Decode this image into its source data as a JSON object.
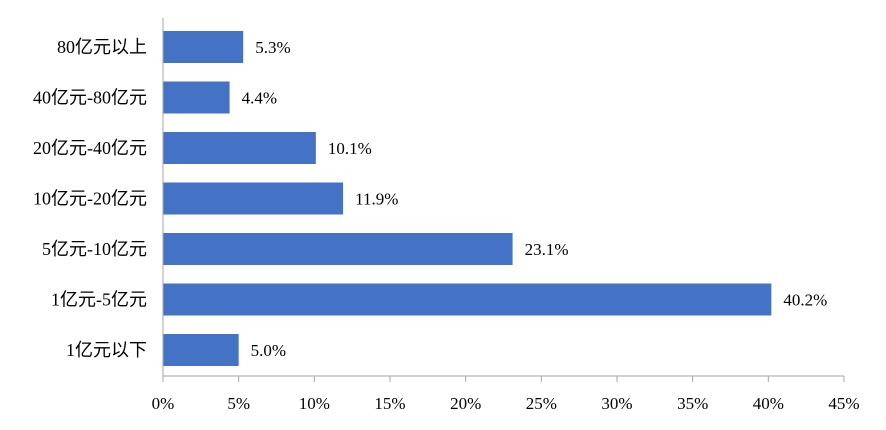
{
  "chart_data": {
    "type": "bar",
    "orientation": "horizontal",
    "title": "",
    "xlabel": "",
    "ylabel": "",
    "categories": [
      "80亿元以上",
      "40亿元-80亿元",
      "20亿元-40亿元",
      "10亿元-20亿元",
      "5亿元-10亿元",
      "1亿元-5亿元",
      "1亿元以下"
    ],
    "values": [
      5.3,
      4.4,
      10.1,
      11.9,
      23.1,
      40.2,
      5.0
    ],
    "data_labels": [
      "5.3%",
      "4.4%",
      "10.1%",
      "11.9%",
      "23.1%",
      "40.2%",
      "5.0%"
    ],
    "xlim": [
      0,
      45
    ],
    "x_ticks": [
      0,
      5,
      10,
      15,
      20,
      25,
      30,
      35,
      40,
      45
    ],
    "x_tick_labels": [
      "0%",
      "5%",
      "10%",
      "15%",
      "20%",
      "25%",
      "30%",
      "35%",
      "40%",
      "45%"
    ],
    "grid": false,
    "legend": "none",
    "bar_color": "#4472C4",
    "axis_color": "#A6A6A6"
  }
}
